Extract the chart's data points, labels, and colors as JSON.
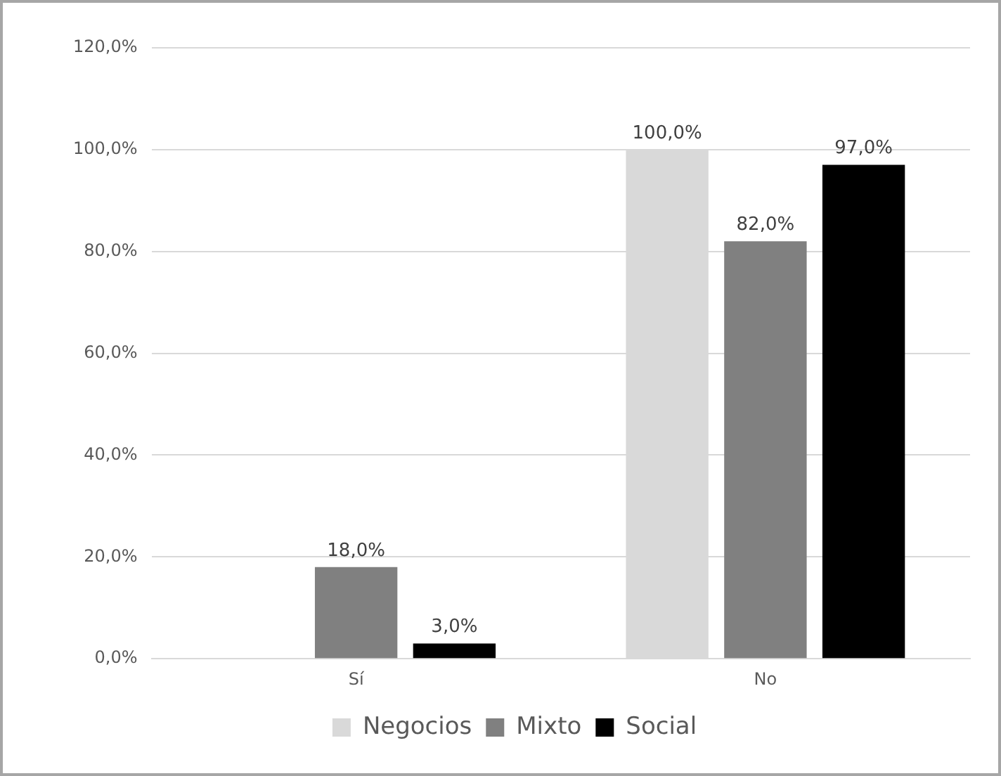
{
  "chart_data": {
    "type": "bar",
    "categories": [
      "Sí",
      "No"
    ],
    "series": [
      {
        "name": "Negocios",
        "color": "#d9d9d9",
        "values": [
          0,
          100
        ],
        "value_labels": [
          null,
          "100,0%"
        ]
      },
      {
        "name": "Mixto",
        "color": "#808080",
        "values": [
          18,
          82
        ],
        "value_labels": [
          "18,0%",
          "82,0%"
        ]
      },
      {
        "name": "Social",
        "color": "#000000",
        "values": [
          3,
          97
        ],
        "value_labels": [
          "3,0%",
          "97,0%"
        ]
      }
    ],
    "ylim": [
      0,
      120
    ],
    "yticks": [
      {
        "value": 0,
        "label": "0,0%"
      },
      {
        "value": 20,
        "label": "20,0%"
      },
      {
        "value": 40,
        "label": "40,0%"
      },
      {
        "value": 60,
        "label": "60,0%"
      },
      {
        "value": 80,
        "label": "80,0%"
      },
      {
        "value": 100,
        "label": "100,0%"
      },
      {
        "value": 120,
        "label": "120,0%"
      }
    ],
    "grid": "y",
    "legend": "bottom"
  }
}
